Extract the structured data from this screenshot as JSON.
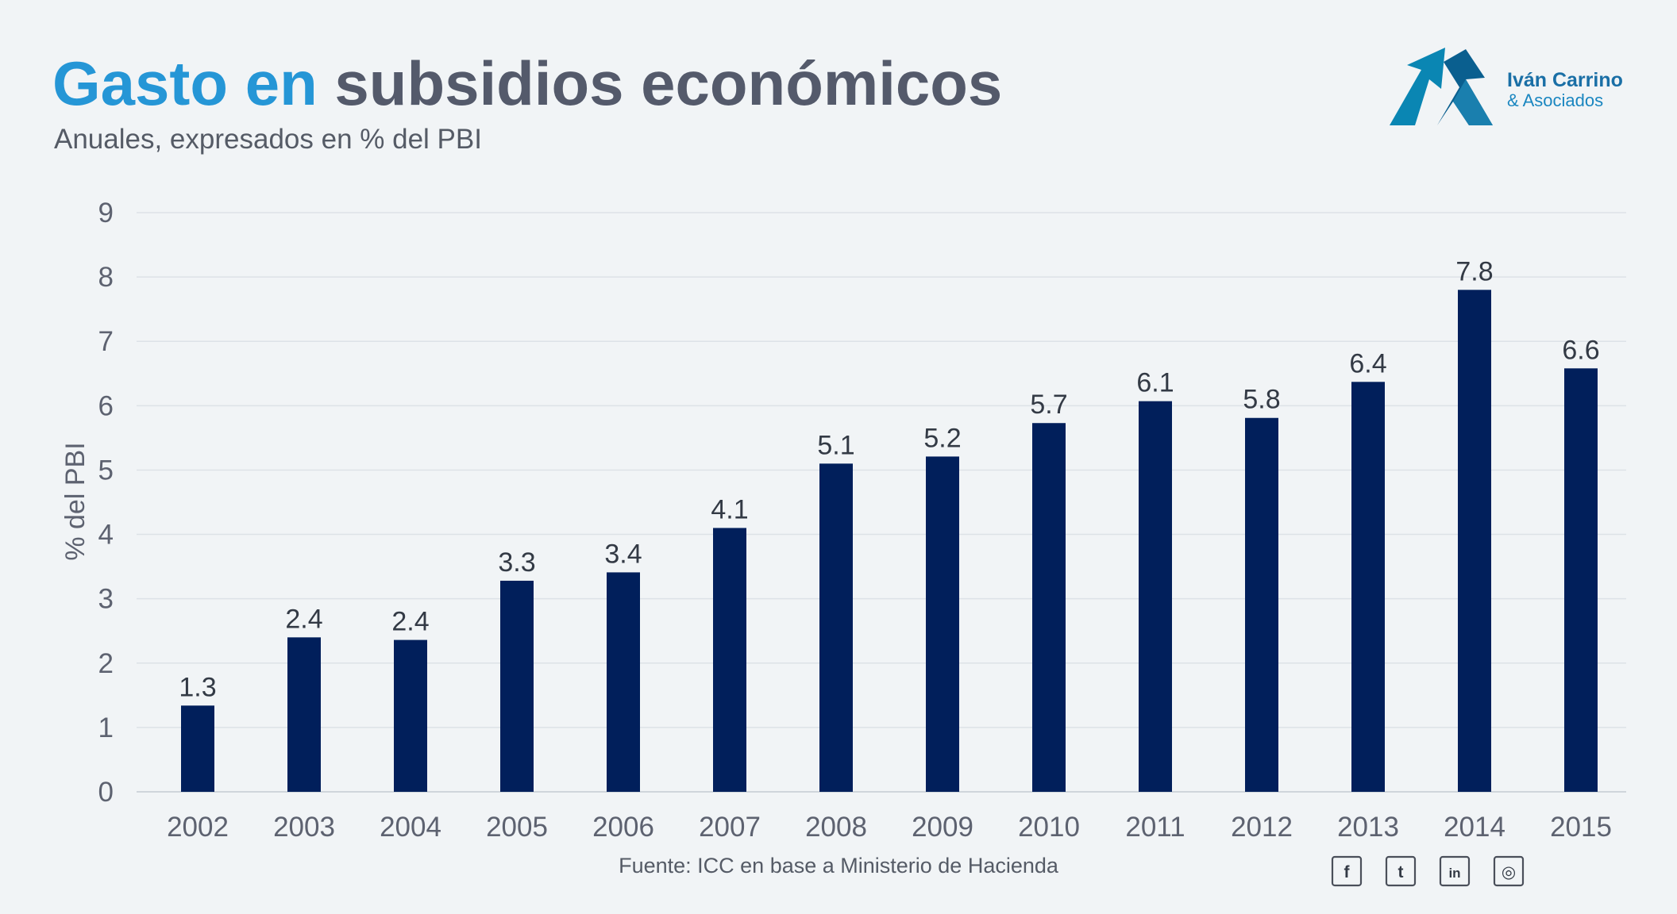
{
  "header": {
    "title_accent": "Gasto en",
    "title_main": "subsidios económicos",
    "subtitle": "Anuales, expresados en % del PBI"
  },
  "brand": {
    "name": "Iván Carrino",
    "sub": "& Asociados"
  },
  "source": "Fuente: ICC en base a Ministerio de Hacienda",
  "social": [
    {
      "icon": "facebook-icon",
      "glyph": "f"
    },
    {
      "icon": "twitter-icon",
      "glyph": "t"
    },
    {
      "icon": "linkedin-icon",
      "glyph": "in"
    },
    {
      "icon": "instagram-icon",
      "glyph": "◎"
    }
  ],
  "colors": {
    "bar": "#011f5b",
    "accent": "#2596d6",
    "title": "#545a6b",
    "background": "#f1f4f6"
  },
  "chart_data": {
    "type": "bar",
    "title": "Gasto en subsidios económicos",
    "subtitle": "Anuales, expresados en % del PBI",
    "xlabel": "",
    "ylabel": "% del PBI",
    "ylim": [
      0,
      9
    ],
    "yticks": [
      0,
      1,
      2,
      3,
      4,
      5,
      6,
      7,
      8,
      9
    ],
    "grid": true,
    "categories": [
      "2002",
      "2003",
      "2004",
      "2005",
      "2006",
      "2007",
      "2008",
      "2009",
      "2010",
      "2011",
      "2012",
      "2013",
      "2014",
      "2015"
    ],
    "values": [
      1.34,
      2.4,
      2.36,
      3.28,
      3.41,
      4.1,
      5.1,
      5.21,
      5.73,
      6.07,
      5.81,
      6.37,
      7.8,
      6.58
    ],
    "data_labels": [
      "1.3",
      "2.4",
      "2.4",
      "3.3",
      "3.4",
      "4.1",
      "5.1",
      "5.2",
      "5.7",
      "6.1",
      "5.8",
      "6.4",
      "7.8",
      "6.6"
    ]
  }
}
